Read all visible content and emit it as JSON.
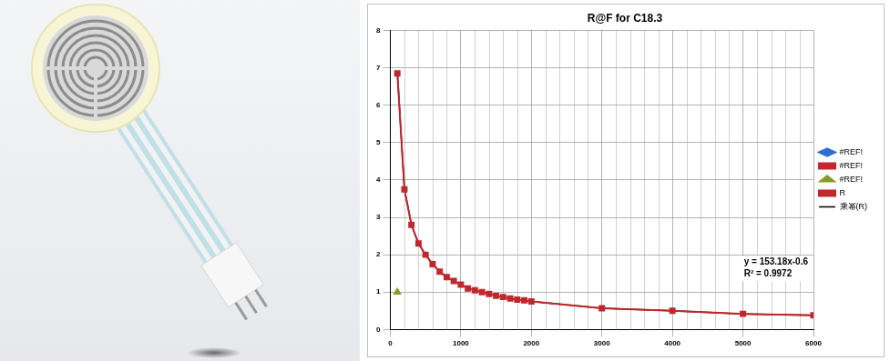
{
  "chart_data": {
    "type": "scatter",
    "title": "R@F for C18.3",
    "x": [
      100,
      200,
      300,
      400,
      500,
      600,
      700,
      800,
      900,
      1000,
      1100,
      1200,
      1300,
      1400,
      1500,
      1600,
      1700,
      1800,
      1900,
      2000,
      3000,
      4000,
      5000,
      6000
    ],
    "series": [
      {
        "name": "#REF!",
        "color": "#2e6fd1",
        "marker": "diamond",
        "line_style": "solid",
        "values": [
          null,
          null,
          null,
          null,
          null,
          null,
          null,
          null,
          null,
          null,
          null,
          null,
          null,
          null,
          null,
          null,
          null,
          null,
          null,
          null,
          null,
          null,
          null,
          null
        ]
      },
      {
        "name": "#REF!",
        "color": "#c0282e",
        "marker": "square",
        "line_style": "solid",
        "values": [
          null,
          null,
          null,
          null,
          null,
          null,
          null,
          null,
          null,
          null,
          null,
          null,
          null,
          null,
          null,
          null,
          null,
          null,
          null,
          null,
          null,
          null,
          null,
          null
        ]
      },
      {
        "name": "#REF!",
        "color": "#8a9a2a",
        "marker": "triangle",
        "line_style": "solid",
        "values": [
          1.0,
          null,
          null,
          null,
          null,
          null,
          null,
          null,
          null,
          null,
          null,
          null,
          null,
          null,
          null,
          null,
          null,
          null,
          null,
          null,
          null,
          null,
          null,
          null
        ]
      },
      {
        "name": "R",
        "color": "#c0282e",
        "marker": "square",
        "line_style": "solid",
        "values": [
          6.85,
          3.75,
          2.8,
          2.3,
          2.0,
          1.75,
          1.55,
          1.4,
          1.3,
          1.2,
          1.1,
          1.05,
          1.0,
          0.95,
          0.9,
          0.87,
          0.83,
          0.8,
          0.78,
          0.75,
          0.57,
          0.5,
          0.42,
          0.38
        ]
      },
      {
        "name": "乘幂(R)",
        "color": "#000000",
        "marker": "none",
        "line_style": "solid",
        "values": [
          6.9,
          3.75,
          2.8,
          2.3,
          2.0,
          1.75,
          1.55,
          1.4,
          1.3,
          1.2,
          1.1,
          1.05,
          1.0,
          0.95,
          0.9,
          0.87,
          0.83,
          0.8,
          0.78,
          0.75,
          0.57,
          0.5,
          0.42,
          0.38
        ]
      }
    ],
    "xlim": [
      0,
      6000
    ],
    "xticks": [
      0,
      1000,
      2000,
      3000,
      4000,
      5000,
      6000
    ],
    "ylim": [
      0,
      8
    ],
    "yticks": [
      0,
      1,
      2,
      3,
      4,
      5,
      6,
      7,
      8
    ],
    "grid": true,
    "legend": "right",
    "annotations": [
      "y = 153.18x-0.6",
      "R² = 0.9972"
    ]
  }
}
